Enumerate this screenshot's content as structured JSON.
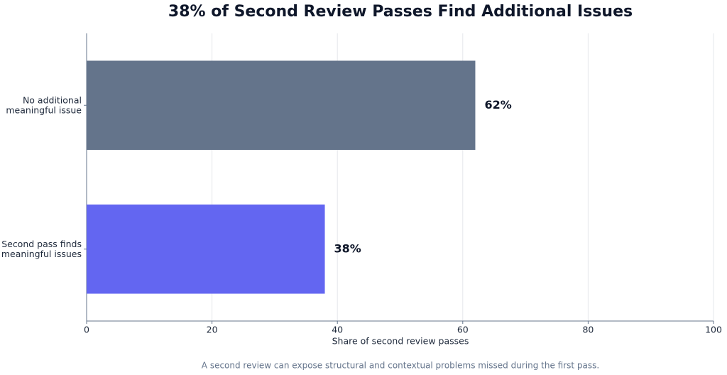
{
  "chart_data": {
    "type": "bar",
    "orientation": "horizontal",
    "title": "38% of Second Review Passes Find Additional Issues",
    "categories": [
      "No additional\nmeaningful issue",
      "Second pass finds\nmeaningful issues"
    ],
    "values": [
      62,
      38
    ],
    "value_labels": [
      "62%",
      "38%"
    ],
    "colors": [
      "#64748b",
      "#6366f1"
    ],
    "xlabel": "Share of second review passes",
    "xlim": [
      0,
      100
    ],
    "xticks": [
      0,
      20,
      40,
      60,
      80,
      100
    ],
    "grid": true,
    "caption": "A second review can expose structural and contextual problems missed during the first pass."
  }
}
